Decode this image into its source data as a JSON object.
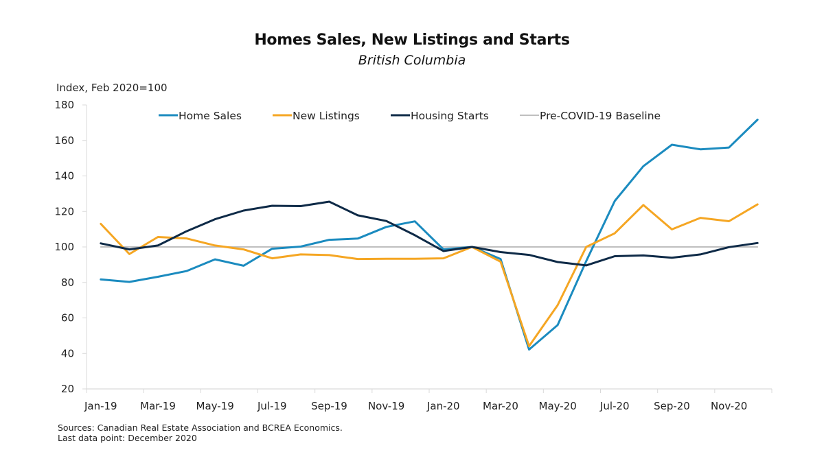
{
  "chart_data": {
    "type": "line",
    "title": "Homes Sales, New Listings and Starts",
    "subtitle": "British Columbia",
    "ylabel": "Index, Feb 2020=100",
    "xlabel": "",
    "ylim": [
      20,
      180
    ],
    "yticks": [
      20,
      40,
      60,
      80,
      100,
      120,
      140,
      160,
      180
    ],
    "grid": false,
    "legend_position": "top",
    "x": [
      "Jan-19",
      "Feb-19",
      "Mar-19",
      "Apr-19",
      "May-19",
      "Jun-19",
      "Jul-19",
      "Aug-19",
      "Sep-19",
      "Oct-19",
      "Nov-19",
      "Dec-19",
      "Jan-20",
      "Feb-20",
      "Mar-20",
      "Apr-20",
      "May-20",
      "Jun-20",
      "Jul-20",
      "Aug-20",
      "Sep-20",
      "Oct-20",
      "Nov-20",
      "Dec-20"
    ],
    "xtick_labels": [
      "Jan-19",
      "Mar-19",
      "May-19",
      "Jul-19",
      "Sep-19",
      "Nov-19",
      "Jan-20",
      "Mar-20",
      "May-20",
      "Jul-20",
      "Sep-20",
      "Nov-20"
    ],
    "series": [
      {
        "name": "Home Sales",
        "color": "#1b8bbf",
        "values": [
          81.7,
          80.3,
          83.2,
          86.4,
          93.0,
          89.4,
          99.0,
          100.2,
          104.0,
          104.7,
          111.3,
          114.4,
          98.6,
          100.0,
          93.2,
          42.2,
          56.0,
          92.0,
          125.9,
          145.5,
          157.6,
          155.0,
          156.0,
          171.7
        ]
      },
      {
        "name": "New Listings",
        "color": "#f5a623",
        "values": [
          113.0,
          96.0,
          105.6,
          104.8,
          100.8,
          98.6,
          93.6,
          95.8,
          95.4,
          93.2,
          93.3,
          93.3,
          93.6,
          100.0,
          91.7,
          44.1,
          67.2,
          100.0,
          107.7,
          123.6,
          109.9,
          116.4,
          114.5,
          124.0
        ]
      },
      {
        "name": "Housing Starts",
        "color": "#0e2a47",
        "values": [
          102.0,
          98.6,
          100.8,
          108.8,
          115.6,
          120.5,
          123.2,
          123.0,
          125.5,
          117.8,
          114.6,
          106.6,
          97.7,
          100.0,
          97.1,
          95.5,
          91.5,
          89.6,
          94.8,
          95.2,
          93.9,
          95.8,
          99.9,
          102.2
        ]
      },
      {
        "name": "Pre-COVID-19 Baseline",
        "color": "#bfbfbf",
        "values": [
          100,
          100,
          100,
          100,
          100,
          100,
          100,
          100,
          100,
          100,
          100,
          100,
          100,
          100,
          100,
          100,
          100,
          100,
          100,
          100,
          100,
          100,
          100,
          100
        ]
      }
    ]
  },
  "footer": {
    "sources": "Sources: Canadian Real Estate Association and BCREA Economics.",
    "last_point": "Last data point: December 2020"
  }
}
